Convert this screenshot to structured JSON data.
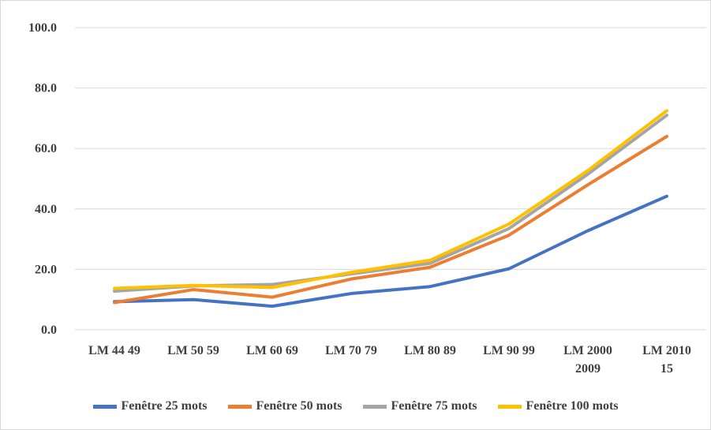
{
  "chart_data": {
    "type": "line",
    "title": "",
    "xlabel": "",
    "ylabel": "",
    "ylim": [
      0,
      100
    ],
    "yticks": [
      "0.0",
      "20.0",
      "40.0",
      "60.0",
      "80.0",
      "100.0"
    ],
    "categories": [
      [
        "LM 44 49"
      ],
      [
        "LM 50 59"
      ],
      [
        "LM 60 69"
      ],
      [
        "LM 70 79"
      ],
      [
        "LM 80 89"
      ],
      [
        "LM 90 99"
      ],
      [
        "LM 2000",
        "2009"
      ],
      [
        "LM 2010",
        "15"
      ]
    ],
    "grid": true,
    "legend_position": "bottom",
    "series": [
      {
        "name": "Fenêtre 25 mots",
        "color": "#4472C4",
        "values": [
          9.3,
          10.0,
          7.8,
          12.0,
          14.3,
          20.2,
          32.8,
          44.2
        ]
      },
      {
        "name": "Fenêtre 50 mots",
        "color": "#ED7D31",
        "values": [
          9.0,
          13.3,
          10.8,
          16.8,
          20.7,
          31.3,
          48.0,
          64.0
        ]
      },
      {
        "name": "Fenêtre 75 mots",
        "color": "#A5A5A5",
        "values": [
          12.8,
          14.5,
          15.0,
          18.5,
          22.0,
          33.5,
          51.5,
          71.0
        ]
      },
      {
        "name": "Fenêtre 100 mots",
        "color": "#FFC000",
        "values": [
          13.7,
          14.7,
          14.0,
          19.0,
          23.0,
          35.0,
          52.7,
          72.5
        ]
      }
    ]
  }
}
